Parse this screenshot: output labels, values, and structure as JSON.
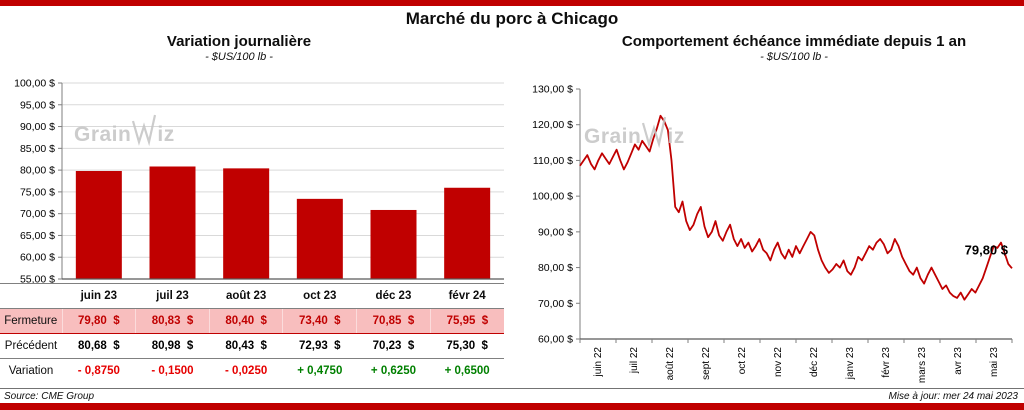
{
  "page": {
    "title": "Marché du porc à Chicago",
    "source_note": "Source: CME Group",
    "update_note": "Mise à jour: mer 24 mai 2023"
  },
  "watermark": {
    "part1": "Grain",
    "part2": "iz",
    "full": "GrainWiz"
  },
  "colors": {
    "accent_red": "#C00000",
    "highlight_row_bg": "#F8BEBE",
    "negative_text": "#E60000",
    "positive_text": "#008000",
    "gridline": "#D9D9D9"
  },
  "table": {
    "columns": [
      "juin 23",
      "juil 23",
      "août 23",
      "oct 23",
      "déc 23",
      "févr 24"
    ],
    "row_labels": [
      "Fermeture",
      "Précédent",
      "Variation"
    ],
    "fermeture": [
      "79,80  $",
      "80,83  $",
      "80,40  $",
      "73,40  $",
      "70,85  $",
      "75,95  $"
    ],
    "precedent": [
      "80,68  $",
      "80,98  $",
      "80,43  $",
      "72,93  $",
      "70,23  $",
      "75,30  $"
    ],
    "variation": [
      "- 0,8750",
      "- 0,1500",
      "- 0,0250",
      "+ 0,4750",
      "+ 0,6250",
      "+ 0,6500"
    ],
    "variation_signs": [
      "neg",
      "neg",
      "neg",
      "pos",
      "pos",
      "pos"
    ]
  },
  "chart_data": [
    {
      "type": "bar",
      "title": "Variation journalière",
      "subtitle": "- $US/100 lb -",
      "categories": [
        "juin 23",
        "juil 23",
        "août 23",
        "oct 23",
        "déc 23",
        "févr 24"
      ],
      "values": [
        79.8,
        80.83,
        80.4,
        73.4,
        70.85,
        75.95
      ],
      "ylim": [
        55,
        100
      ],
      "ytick_step": 5,
      "ytick_format": "fr_currency",
      "bar_color": "#C00000",
      "grid": true,
      "legend": "none"
    },
    {
      "type": "line",
      "title": "Comportement échéance immédiate depuis 1 an",
      "subtitle": "- $US/100 lb -",
      "x_labels": [
        "juin 22",
        "juil 22",
        "août 22",
        "sept 22",
        "oct 22",
        "nov 22",
        "déc 22",
        "janv 23",
        "févr 23",
        "mars 23",
        "avr 23",
        "mai 23"
      ],
      "values": [
        108.5,
        110,
        111.5,
        109,
        107.5,
        110,
        112,
        110.5,
        109,
        111,
        113,
        110,
        107.5,
        109.5,
        112,
        114.5,
        113,
        115.5,
        114,
        112.5,
        116,
        119,
        122.5,
        121,
        118.5,
        110,
        97,
        95.5,
        98.5,
        93,
        90.5,
        92,
        95,
        97,
        91.5,
        88.5,
        90,
        93,
        89,
        87.5,
        90,
        92,
        88,
        86,
        88,
        85.5,
        87,
        84.5,
        86,
        88,
        85,
        84,
        82,
        85,
        87,
        84,
        82.5,
        85,
        83,
        86,
        84,
        86,
        88,
        90,
        89,
        85,
        82,
        80,
        78.5,
        79.5,
        81,
        80,
        82,
        79,
        78,
        80,
        83,
        82,
        84,
        86,
        85,
        87,
        88,
        86.5,
        84,
        85,
        88,
        86,
        83,
        81,
        79,
        78,
        80,
        77,
        75.5,
        78,
        80,
        78,
        76,
        74,
        75,
        73,
        72,
        71.5,
        73,
        71,
        72.5,
        74,
        73,
        75,
        77,
        80,
        83,
        86,
        85.5,
        87,
        84,
        81,
        79.8
      ],
      "ylim": [
        60,
        130
      ],
      "ytick_step": 10,
      "ytick_format": "fr_currency",
      "line_color": "#C00000",
      "grid": false,
      "legend": "none",
      "annotation": "79,80 $",
      "last_value": 79.8
    }
  ]
}
